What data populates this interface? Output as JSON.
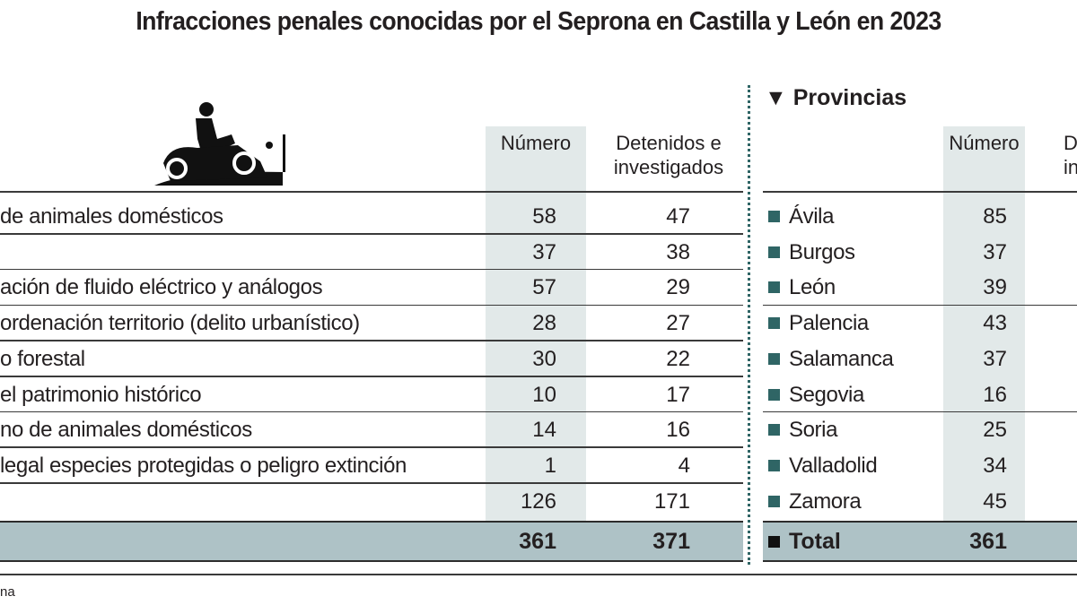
{
  "title": "Infracciones penales conocidas por el Seprona en Castilla y León en 2023",
  "colors": {
    "shade": "#e2e9e9",
    "total_bar": "#aec2c6",
    "bullet": "#2f6565",
    "text": "#231f20"
  },
  "icon": "motorcycle-rider-icon",
  "chart_data": {
    "type": "table",
    "tables": [
      {
        "columns": [
          "",
          "Número",
          "Detenidos e investigados"
        ],
        "rows": [
          {
            "label": "de animales domésticos",
            "numero": "58",
            "detenidos": "47"
          },
          {
            "label": "",
            "numero": "37",
            "detenidos": "38"
          },
          {
            "label": "ación de fluido eléctrico y análogos",
            "numero": "57",
            "detenidos": "29"
          },
          {
            "label": "ordenación territorio (delito urbanístico)",
            "numero": "28",
            "detenidos": "27"
          },
          {
            "label": "o forestal",
            "numero": "30",
            "detenidos": "22"
          },
          {
            "label": "el patrimonio histórico",
            "numero": "10",
            "detenidos": "17"
          },
          {
            "label": "no de animales domésticos",
            "numero": "14",
            "detenidos": "16"
          },
          {
            "label": "legal especies protegidas o peligro extinción",
            "numero": "1",
            "detenidos": "4"
          },
          {
            "label": "",
            "numero": "126",
            "detenidos": "171"
          }
        ],
        "total": {
          "numero": "361",
          "detenidos": "371"
        }
      },
      {
        "heading": "Provincias",
        "columns": [
          "",
          "Número",
          "D",
          "in"
        ],
        "rows": [
          {
            "label": "Ávila",
            "numero": "85"
          },
          {
            "label": "Burgos",
            "numero": "37"
          },
          {
            "label": "León",
            "numero": "39"
          },
          {
            "label": "Palencia",
            "numero": "43"
          },
          {
            "label": "Salamanca",
            "numero": "37"
          },
          {
            "label": "Segovia",
            "numero": "16"
          },
          {
            "label": "Soria",
            "numero": "25"
          },
          {
            "label": "Valladolid",
            "numero": "34"
          },
          {
            "label": "Zamora",
            "numero": "45"
          }
        ],
        "total": {
          "label": "Total",
          "numero": "361"
        }
      }
    ]
  },
  "source": "na"
}
